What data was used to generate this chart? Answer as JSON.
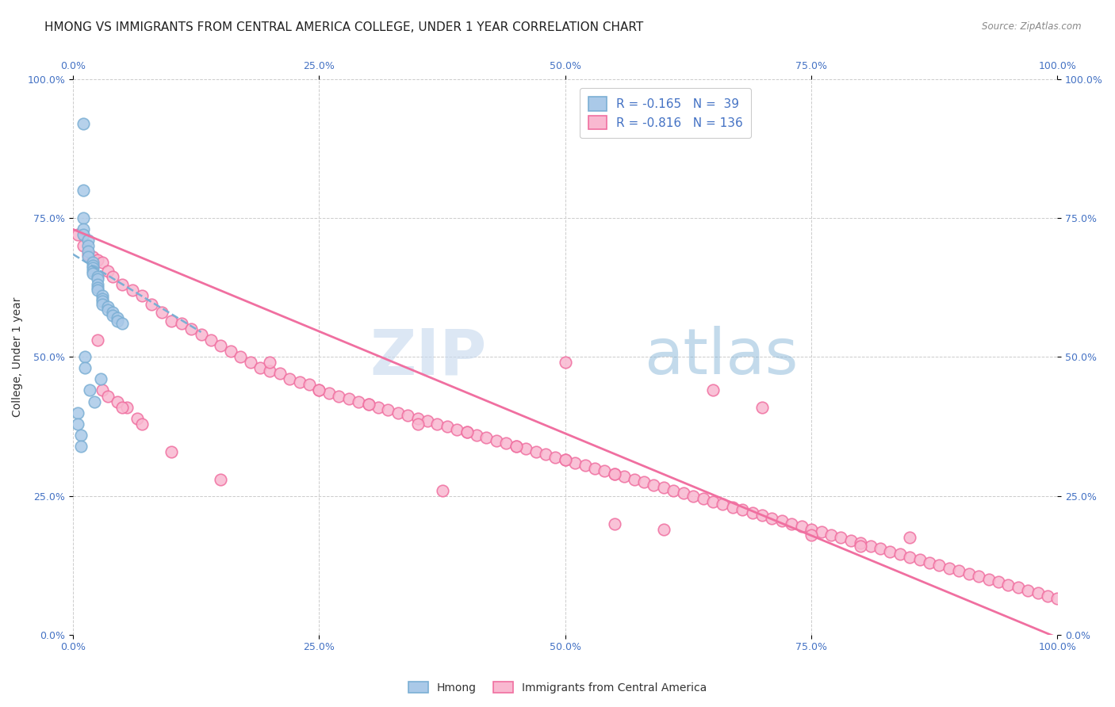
{
  "title": "HMONG VS IMMIGRANTS FROM CENTRAL AMERICA COLLEGE, UNDER 1 YEAR CORRELATION CHART",
  "source": "Source: ZipAtlas.com",
  "ylabel": "College, Under 1 year",
  "xlim": [
    0,
    1.0
  ],
  "ylim": [
    0,
    1.0
  ],
  "xticks": [
    0.0,
    0.25,
    0.5,
    0.75,
    1.0
  ],
  "yticks": [
    0.0,
    0.25,
    0.5,
    0.75,
    1.0
  ],
  "xticklabels": [
    "0.0%",
    "25.0%",
    "50.0%",
    "75.0%",
    "100.0%"
  ],
  "yticklabels": [
    "0.0%",
    "25.0%",
    "50.0%",
    "75.0%",
    "100.0%"
  ],
  "hmong_color": "#7bafd4",
  "hmong_face": "#aac9e8",
  "ca_color": "#f06fa0",
  "ca_face": "#f9b8d0",
  "watermark_zip": "ZIP",
  "watermark_atlas": "atlas",
  "hmong_x": [
    0.005,
    0.005,
    0.008,
    0.008,
    0.01,
    0.01,
    0.01,
    0.01,
    0.01,
    0.012,
    0.012,
    0.015,
    0.015,
    0.015,
    0.015,
    0.017,
    0.02,
    0.02,
    0.02,
    0.02,
    0.02,
    0.022,
    0.025,
    0.025,
    0.025,
    0.025,
    0.025,
    0.028,
    0.03,
    0.03,
    0.03,
    0.03,
    0.035,
    0.035,
    0.04,
    0.04,
    0.045,
    0.045,
    0.05
  ],
  "hmong_y": [
    0.4,
    0.38,
    0.36,
    0.34,
    0.92,
    0.8,
    0.75,
    0.73,
    0.72,
    0.5,
    0.48,
    0.71,
    0.7,
    0.69,
    0.68,
    0.44,
    0.67,
    0.665,
    0.66,
    0.655,
    0.65,
    0.42,
    0.645,
    0.64,
    0.63,
    0.625,
    0.62,
    0.46,
    0.61,
    0.605,
    0.6,
    0.595,
    0.59,
    0.585,
    0.58,
    0.575,
    0.57,
    0.565,
    0.56
  ],
  "ca_x": [
    0.005,
    0.01,
    0.015,
    0.02,
    0.025,
    0.025,
    0.03,
    0.03,
    0.035,
    0.035,
    0.04,
    0.045,
    0.05,
    0.055,
    0.06,
    0.065,
    0.07,
    0.08,
    0.09,
    0.1,
    0.11,
    0.12,
    0.13,
    0.14,
    0.15,
    0.16,
    0.17,
    0.18,
    0.19,
    0.2,
    0.21,
    0.22,
    0.23,
    0.24,
    0.25,
    0.26,
    0.27,
    0.28,
    0.29,
    0.3,
    0.31,
    0.32,
    0.33,
    0.34,
    0.35,
    0.36,
    0.37,
    0.375,
    0.38,
    0.39,
    0.4,
    0.41,
    0.42,
    0.43,
    0.44,
    0.45,
    0.46,
    0.47,
    0.48,
    0.49,
    0.5,
    0.5,
    0.51,
    0.52,
    0.53,
    0.54,
    0.55,
    0.55,
    0.56,
    0.57,
    0.58,
    0.59,
    0.6,
    0.6,
    0.61,
    0.62,
    0.63,
    0.64,
    0.65,
    0.66,
    0.67,
    0.68,
    0.69,
    0.7,
    0.71,
    0.72,
    0.73,
    0.74,
    0.75,
    0.76,
    0.77,
    0.78,
    0.79,
    0.8,
    0.81,
    0.82,
    0.83,
    0.84,
    0.85,
    0.86,
    0.87,
    0.88,
    0.89,
    0.9,
    0.91,
    0.92,
    0.93,
    0.94,
    0.95,
    0.96,
    0.97,
    0.98,
    0.99,
    1.0,
    0.65,
    0.7,
    0.75,
    0.8,
    0.85,
    0.55,
    0.5,
    0.45,
    0.4,
    0.35,
    0.3,
    0.25,
    0.2,
    0.15,
    0.1,
    0.07,
    0.05
  ],
  "ca_y": [
    0.72,
    0.7,
    0.685,
    0.68,
    0.675,
    0.53,
    0.67,
    0.44,
    0.655,
    0.43,
    0.645,
    0.42,
    0.63,
    0.41,
    0.62,
    0.39,
    0.61,
    0.595,
    0.58,
    0.565,
    0.56,
    0.55,
    0.54,
    0.53,
    0.52,
    0.51,
    0.5,
    0.49,
    0.48,
    0.475,
    0.47,
    0.46,
    0.455,
    0.45,
    0.44,
    0.435,
    0.43,
    0.425,
    0.42,
    0.415,
    0.41,
    0.405,
    0.4,
    0.395,
    0.39,
    0.385,
    0.38,
    0.26,
    0.375,
    0.37,
    0.365,
    0.36,
    0.355,
    0.35,
    0.345,
    0.34,
    0.335,
    0.33,
    0.325,
    0.32,
    0.315,
    0.49,
    0.31,
    0.305,
    0.3,
    0.295,
    0.29,
    0.2,
    0.285,
    0.28,
    0.275,
    0.27,
    0.265,
    0.19,
    0.26,
    0.255,
    0.25,
    0.245,
    0.24,
    0.235,
    0.23,
    0.225,
    0.22,
    0.215,
    0.21,
    0.205,
    0.2,
    0.195,
    0.19,
    0.185,
    0.18,
    0.175,
    0.17,
    0.165,
    0.16,
    0.155,
    0.15,
    0.145,
    0.14,
    0.135,
    0.13,
    0.125,
    0.12,
    0.115,
    0.11,
    0.105,
    0.1,
    0.095,
    0.09,
    0.085,
    0.08,
    0.075,
    0.07,
    0.065,
    0.44,
    0.41,
    0.18,
    0.16,
    0.175,
    0.29,
    0.315,
    0.34,
    0.365,
    0.38,
    0.415,
    0.44,
    0.49,
    0.28,
    0.33,
    0.38,
    0.41
  ],
  "hmong_trendline_x": [
    0.0,
    0.13
  ],
  "hmong_trendline_y": [
    0.685,
    0.545
  ],
  "ca_trendline_x": [
    0.0,
    1.02
  ],
  "ca_trendline_y": [
    0.73,
    -0.02
  ],
  "background_color": "#ffffff",
  "grid_color": "#cccccc",
  "tick_color": "#4472c4",
  "title_fontsize": 11,
  "axis_label_fontsize": 10,
  "tick_fontsize": 9,
  "legend_fontsize": 11
}
